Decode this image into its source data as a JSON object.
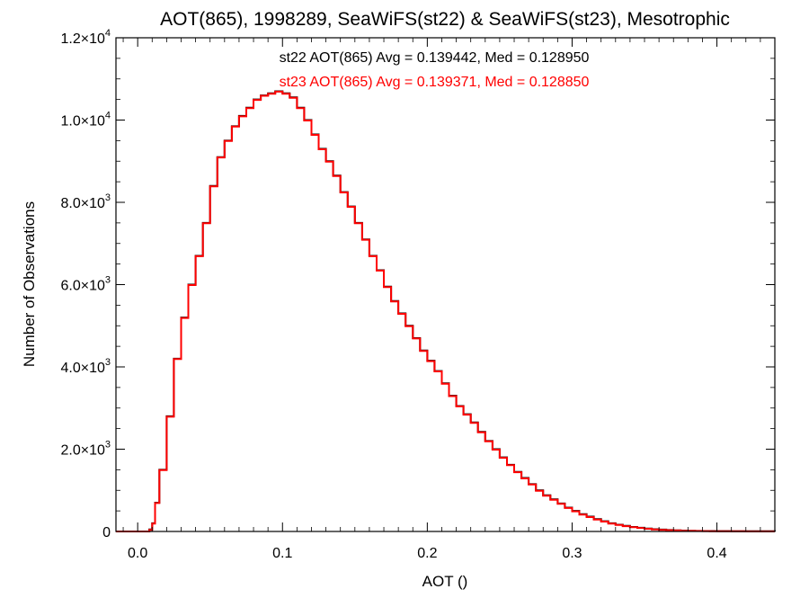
{
  "chart_data": {
    "type": "histogram",
    "title": "AOT(865), 1998289, SeaWiFS(st22) & SeaWiFS(st23), Mesotrophic",
    "xlabel": "AOT ()",
    "ylabel": "Number of Observations",
    "xlim": [
      -0.015,
      0.44
    ],
    "ylim": [
      0,
      12000
    ],
    "grid": false,
    "x_ticks": [
      {
        "value": 0.0,
        "label": "0.0"
      },
      {
        "value": 0.1,
        "label": "0.1"
      },
      {
        "value": 0.2,
        "label": "0.2"
      },
      {
        "value": 0.3,
        "label": "0.3"
      },
      {
        "value": 0.4,
        "label": "0.4"
      }
    ],
    "y_ticks": [
      {
        "value": 0,
        "mantissa": "0",
        "exponent": ""
      },
      {
        "value": 2000,
        "mantissa": "2.0×10",
        "exponent": "3"
      },
      {
        "value": 4000,
        "mantissa": "4.0×10",
        "exponent": "3"
      },
      {
        "value": 6000,
        "mantissa": "6.0×10",
        "exponent": "3"
      },
      {
        "value": 8000,
        "mantissa": "8.0×10",
        "exponent": "3"
      },
      {
        "value": 10000,
        "mantissa": "1.0×10",
        "exponent": "4"
      },
      {
        "value": 12000,
        "mantissa": "1.2×10",
        "exponent": "4"
      }
    ],
    "annotations": [
      {
        "text": "st22 AOT(865) Avg = 0.139442, Med = 0.128950",
        "color": "#000000"
      },
      {
        "text": "st23 AOT(865) Avg = 0.139371, Med = 0.128850",
        "color": "#ff0000"
      }
    ],
    "series": [
      {
        "color": "#000000",
        "x": [
          -0.015,
          0.0,
          0.005,
          0.008,
          0.01,
          0.012,
          0.015,
          0.02,
          0.025,
          0.03,
          0.035,
          0.04,
          0.045,
          0.05,
          0.055,
          0.06,
          0.065,
          0.07,
          0.075,
          0.08,
          0.085,
          0.09,
          0.095,
          0.1,
          0.105,
          0.11,
          0.115,
          0.12,
          0.125,
          0.13,
          0.135,
          0.14,
          0.145,
          0.15,
          0.155,
          0.16,
          0.165,
          0.17,
          0.175,
          0.18,
          0.185,
          0.19,
          0.195,
          0.2,
          0.205,
          0.21,
          0.215,
          0.22,
          0.225,
          0.23,
          0.235,
          0.24,
          0.245,
          0.25,
          0.255,
          0.26,
          0.265,
          0.27,
          0.275,
          0.28,
          0.285,
          0.29,
          0.295,
          0.3,
          0.305,
          0.31,
          0.315,
          0.32,
          0.325,
          0.33,
          0.335,
          0.34,
          0.345,
          0.35,
          0.355,
          0.36,
          0.365,
          0.37,
          0.375,
          0.38,
          0.385,
          0.39,
          0.395,
          0.4,
          0.41,
          0.42,
          0.43,
          0.44
        ],
        "y": [
          0,
          0,
          0,
          50,
          200,
          700,
          1500,
          2800,
          4200,
          5200,
          6000,
          6700,
          7500,
          8400,
          9100,
          9500,
          9850,
          10100,
          10300,
          10500,
          10600,
          10650,
          10700,
          10650,
          10550,
          10300,
          10000,
          9650,
          9300,
          9000,
          8650,
          8250,
          7900,
          7500,
          7100,
          6700,
          6350,
          5950,
          5600,
          5300,
          5000,
          4700,
          4400,
          4150,
          3900,
          3600,
          3300,
          3050,
          2850,
          2650,
          2420,
          2200,
          2000,
          1800,
          1620,
          1450,
          1300,
          1150,
          1000,
          880,
          780,
          680,
          580,
          500,
          420,
          360,
          300,
          250,
          200,
          165,
          135,
          110,
          90,
          70,
          55,
          45,
          35,
          28,
          22,
          18,
          14,
          12,
          10,
          8,
          6,
          5,
          4,
          3
        ]
      },
      {
        "color": "#ff0000",
        "x": [
          -0.015,
          0.0,
          0.005,
          0.008,
          0.01,
          0.012,
          0.015,
          0.02,
          0.025,
          0.03,
          0.035,
          0.04,
          0.045,
          0.05,
          0.055,
          0.06,
          0.065,
          0.07,
          0.075,
          0.08,
          0.085,
          0.09,
          0.095,
          0.1,
          0.105,
          0.11,
          0.115,
          0.12,
          0.125,
          0.13,
          0.135,
          0.14,
          0.145,
          0.15,
          0.155,
          0.16,
          0.165,
          0.17,
          0.175,
          0.18,
          0.185,
          0.19,
          0.195,
          0.2,
          0.205,
          0.21,
          0.215,
          0.22,
          0.225,
          0.23,
          0.235,
          0.24,
          0.245,
          0.25,
          0.255,
          0.26,
          0.265,
          0.27,
          0.275,
          0.28,
          0.285,
          0.29,
          0.295,
          0.3,
          0.305,
          0.31,
          0.315,
          0.32,
          0.325,
          0.33,
          0.335,
          0.34,
          0.345,
          0.35,
          0.355,
          0.36,
          0.365,
          0.37,
          0.375,
          0.38,
          0.385,
          0.39,
          0.395,
          0.4,
          0.41,
          0.42,
          0.43,
          0.44
        ],
        "y": [
          0,
          0,
          0,
          40,
          190,
          690,
          1490,
          2790,
          4190,
          5190,
          5990,
          6690,
          7490,
          8390,
          9090,
          9490,
          9840,
          10090,
          10290,
          10490,
          10590,
          10640,
          10690,
          10640,
          10540,
          10290,
          9990,
          9640,
          9290,
          8990,
          8640,
          8240,
          7890,
          7490,
          7090,
          6690,
          6340,
          5940,
          5590,
          5290,
          4990,
          4690,
          4390,
          4140,
          3890,
          3590,
          3290,
          3040,
          2840,
          2640,
          2410,
          2190,
          1990,
          1790,
          1610,
          1440,
          1290,
          1140,
          990,
          870,
          770,
          670,
          570,
          490,
          410,
          350,
          290,
          240,
          190,
          160,
          130,
          105,
          85,
          65,
          50,
          40,
          30,
          24,
          18,
          14,
          11,
          9,
          7,
          5,
          4,
          3,
          2,
          2
        ]
      }
    ]
  }
}
